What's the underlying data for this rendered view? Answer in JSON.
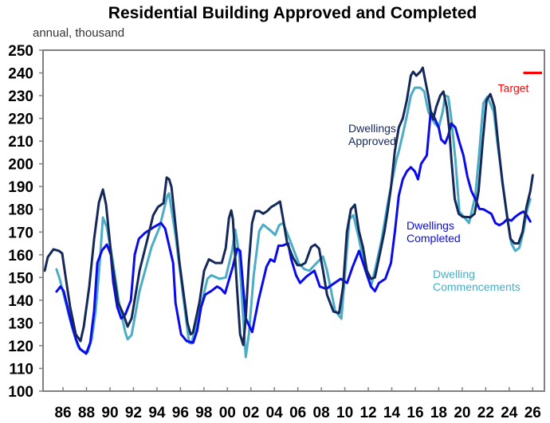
{
  "chart_data": {
    "type": "line",
    "title": "Residential Building Approved and Completed",
    "subtitle": "annual, thousand",
    "xlabel": "",
    "ylabel": "annual, thousand",
    "ylim": [
      100,
      250
    ],
    "xlim": [
      1984.3,
      2027.0
    ],
    "yticks": [
      100,
      110,
      120,
      130,
      140,
      150,
      160,
      170,
      180,
      190,
      200,
      210,
      220,
      230,
      240,
      250
    ],
    "ytick_labels": [
      "100",
      "110",
      "120",
      "130",
      "140",
      "150",
      "160",
      "170",
      "180",
      "190",
      "200",
      "210",
      "220",
      "230",
      "240",
      "250"
    ],
    "xticks": [
      1986,
      1988,
      1990,
      1992,
      1994,
      1996,
      1998,
      2000,
      2002,
      2004,
      2006,
      2008,
      2010,
      2012,
      2014,
      2016,
      2018,
      2020,
      2022,
      2024,
      2026
    ],
    "xtick_labels": [
      "86",
      "88",
      "90",
      "92",
      "94",
      "96",
      "98",
      "00",
      "02",
      "04",
      "06",
      "08",
      "10",
      "12",
      "14",
      "16",
      "18",
      "20",
      "22",
      "24",
      "26"
    ],
    "grid": false,
    "legend": "inline annotations",
    "series": [
      {
        "name": "Dwellings Approved",
        "label_lines": [
          "Dwellings",
          "Approved"
        ],
        "color": "#14285a",
        "x": [
          1984.44,
          1984.71,
          1985.18,
          1985.66,
          1985.93,
          1986.2,
          1986.61,
          1987.09,
          1987.49,
          1987.77,
          1988.24,
          1988.65,
          1989.06,
          1989.4,
          1989.67,
          1990.14,
          1990.69,
          1991.16,
          1991.5,
          1991.84,
          1992.52,
          1993.2,
          1993.68,
          1994.08,
          1994.56,
          1994.83,
          1995.04,
          1995.24,
          1995.92,
          1996.6,
          1996.87,
          1997.07,
          1997.62,
          1998.02,
          1998.43,
          1998.98,
          1999.52,
          1999.86,
          2000.13,
          2000.33,
          2000.47,
          2000.81,
          2001.08,
          2001.35,
          2001.56,
          2001.83,
          2002.1,
          2002.37,
          2002.71,
          2003.05,
          2003.39,
          2003.73,
          2004.07,
          2004.48,
          2004.75,
          2005.09,
          2005.57,
          2005.97,
          2006.31,
          2006.65,
          2007.13,
          2007.47,
          2007.81,
          2008.15,
          2008.49,
          2009.03,
          2009.51,
          2009.85,
          2010.18,
          2010.52,
          2010.86,
          2011.2,
          2011.54,
          2011.88,
          2012.22,
          2012.56,
          2012.97,
          2013.38,
          2013.65,
          2013.92,
          2014.26,
          2014.6,
          2014.94,
          2015.28,
          2015.62,
          2015.82,
          2016.09,
          2016.43,
          2016.64,
          2016.84,
          2017.11,
          2017.32,
          2017.52,
          2017.79,
          2018.13,
          2018.4,
          2018.68,
          2018.88,
          2019.08,
          2019.36,
          2019.7,
          2020.03,
          2020.71,
          2021.05,
          2021.39,
          2021.73,
          2022.07,
          2022.4,
          2022.75,
          2023.09,
          2023.43,
          2023.77,
          2024.11,
          2024.45,
          2024.79,
          2025.13,
          2025.47,
          2025.8,
          2026.01
        ],
        "values": [
          153,
          159,
          162.4,
          161.7,
          160.6,
          151,
          137,
          125,
          122,
          128.4,
          146,
          167,
          183,
          188.7,
          182,
          158,
          139,
          133.6,
          128.4,
          132,
          153,
          167,
          177.4,
          181,
          182.7,
          194,
          193.2,
          189.7,
          156.4,
          130,
          125,
          125.8,
          139,
          153,
          158,
          156.4,
          156.4,
          163,
          176,
          179.5,
          175.7,
          146,
          125,
          120.3,
          132,
          156.4,
          173.9,
          179.2,
          179.2,
          178.1,
          179.2,
          181,
          182,
          183.4,
          175.7,
          165,
          159,
          155.4,
          155.4,
          156.5,
          163.4,
          164.5,
          162.7,
          153,
          142.4,
          135,
          134.3,
          146,
          170,
          180,
          182,
          170.4,
          163.4,
          153,
          149.4,
          150,
          160,
          170.4,
          179.2,
          189,
          205.5,
          216,
          220,
          228,
          238.8,
          240.5,
          238.8,
          240.5,
          242.3,
          237,
          230,
          223,
          219.5,
          225,
          230,
          231.8,
          225,
          216,
          202,
          184.5,
          178,
          176.7,
          176.5,
          178,
          188,
          209,
          228,
          230.7,
          225,
          207.5,
          191.5,
          179,
          167,
          165,
          165,
          170,
          181,
          188,
          195
        ]
      },
      {
        "name": "Dwellings Completed",
        "label_lines": [
          "Dwellings",
          "Completed"
        ],
        "color": "#0a0aeb",
        "x": [
          1985.45,
          1985.79,
          1986.06,
          1986.61,
          1987.09,
          1987.43,
          1987.98,
          1988.32,
          1988.65,
          1988.92,
          1989.33,
          1989.74,
          1990.08,
          1990.28,
          1990.62,
          1990.96,
          1991.3,
          1991.78,
          1992.11,
          1992.46,
          1993.0,
          1993.68,
          1994.35,
          1994.7,
          1995.38,
          1995.58,
          1996.06,
          1996.53,
          1997.08,
          1997.42,
          1997.76,
          1998.1,
          1998.64,
          1999.12,
          1999.46,
          1999.8,
          2000.48,
          2000.82,
          2001.09,
          2001.56,
          2002.11,
          2002.65,
          2003.33,
          2003.67,
          2004.01,
          2004.35,
          2004.69,
          2005.17,
          2005.44,
          2005.85,
          2006.19,
          2006.73,
          2007.41,
          2007.88,
          2008.42,
          2008.97,
          2009.65,
          2010.19,
          2010.67,
          2011.21,
          2011.55,
          2012.23,
          2012.57,
          2012.91,
          2013.45,
          2013.93,
          2014.27,
          2014.6,
          2014.94,
          2015.28,
          2015.62,
          2015.96,
          2016.23,
          2016.5,
          2016.98,
          2017.32,
          2017.66,
          2018.0,
          2018.2,
          2018.54,
          2018.81,
          2019.08,
          2019.42,
          2019.76,
          2020.1,
          2020.44,
          2020.78,
          2021.12,
          2021.46,
          2021.8,
          2022.14,
          2022.48,
          2022.82,
          2023.16,
          2023.5,
          2023.84,
          2024.18,
          2024.52,
          2024.86,
          2025.2,
          2025.54,
          2025.8
        ],
        "values": [
          143.8,
          146,
          144,
          132,
          123,
          118.6,
          116.5,
          121.3,
          135.4,
          156.4,
          162,
          164.5,
          160,
          148,
          137,
          132,
          133.6,
          140,
          160,
          167,
          169.7,
          172,
          174,
          171.5,
          156.4,
          138.8,
          125,
          122,
          121.3,
          126.6,
          137,
          142.4,
          144.1,
          146,
          145,
          143,
          155,
          162.7,
          161.7,
          132,
          126,
          140,
          154.7,
          158,
          157,
          164,
          164,
          165,
          158,
          151,
          147.6,
          150.4,
          153,
          146,
          145,
          147,
          149.4,
          147.6,
          154.7,
          161.7,
          156.5,
          146,
          144,
          147.6,
          149.4,
          156.4,
          170.4,
          186,
          193.2,
          196.7,
          198.5,
          196.7,
          193.2,
          200,
          203.7,
          223,
          220,
          216,
          210.7,
          209,
          212.5,
          217.8,
          216,
          209.6,
          203.7,
          194.3,
          188,
          184.5,
          180.2,
          180,
          179,
          178,
          174,
          173,
          174,
          175.7,
          175,
          176.7,
          178,
          179,
          177,
          174.6
        ]
      },
      {
        "name": "Dwelling Commencements",
        "label_lines": [
          "Dwelling",
          "Commencements"
        ],
        "color": "#4bacc6",
        "x": [
          1985.45,
          1985.72,
          1986.2,
          1986.75,
          1987.29,
          1987.7,
          1988.11,
          1988.45,
          1988.79,
          1989.13,
          1989.4,
          1989.74,
          1990.21,
          1990.76,
          1991.3,
          1991.5,
          1991.84,
          1992.52,
          1993.54,
          1994.22,
          1994.9,
          1995.03,
          1995.58,
          1996.26,
          1996.74,
          1996.94,
          1997.49,
          1998.3,
          1998.64,
          1999.32,
          1999.86,
          2000.4,
          2000.67,
          2001.01,
          2001.35,
          2001.56,
          2001.83,
          2002.24,
          2002.71,
          2003.05,
          2003.73,
          2004.07,
          2004.41,
          2004.75,
          2005.43,
          2006.1,
          2006.58,
          2006.99,
          2007.47,
          2008.15,
          2008.49,
          2009.17,
          2009.71,
          2009.98,
          2010.39,
          2010.73,
          2011.21,
          2011.75,
          2012.22,
          2012.56,
          2013.11,
          2013.72,
          2014.4,
          2014.6,
          2014.94,
          2015.28,
          2015.62,
          2015.96,
          2016.43,
          2016.77,
          2017.11,
          2017.66,
          2018.0,
          2018.34,
          2018.54,
          2018.81,
          2019.08,
          2019.42,
          2019.76,
          2020.3,
          2020.58,
          2021.12,
          2021.46,
          2021.8,
          2022.14,
          2022.68,
          2022.96,
          2023.5,
          2023.84,
          2024.18,
          2024.52,
          2024.86,
          2025.2,
          2025.54,
          2025.8
        ],
        "values": [
          153.6,
          149.4,
          139.6,
          128.4,
          119.6,
          117.5,
          117.2,
          123,
          135.4,
          156.4,
          176.4,
          172,
          158,
          139,
          126,
          122.8,
          124.7,
          144.1,
          163.4,
          172,
          186.2,
          187,
          168.5,
          140.6,
          121.3,
          121,
          131.9,
          149.4,
          151,
          149.4,
          150,
          161.7,
          171,
          160,
          131.9,
          115,
          125,
          151,
          170.4,
          173.2,
          170.4,
          168.7,
          173,
          174,
          165,
          156,
          153.6,
          153,
          155.7,
          159.2,
          153,
          135.4,
          131.9,
          149.4,
          175.7,
          177.4,
          167,
          153,
          146,
          153,
          166,
          184.5,
          202,
          205.5,
          213,
          221,
          230,
          233.5,
          233.5,
          231.8,
          223,
          217.8,
          216,
          223,
          230,
          229.5,
          219.5,
          202,
          179,
          175.7,
          174,
          186,
          205.6,
          226.7,
          229.5,
          223,
          210.7,
          189.7,
          175.7,
          165,
          161.7,
          163,
          170,
          180,
          184.5
        ]
      }
    ],
    "target": {
      "label": "Target",
      "value": 240,
      "x_range": [
        2025.2,
        2027.0
      ],
      "color": "#ff0000"
    }
  }
}
